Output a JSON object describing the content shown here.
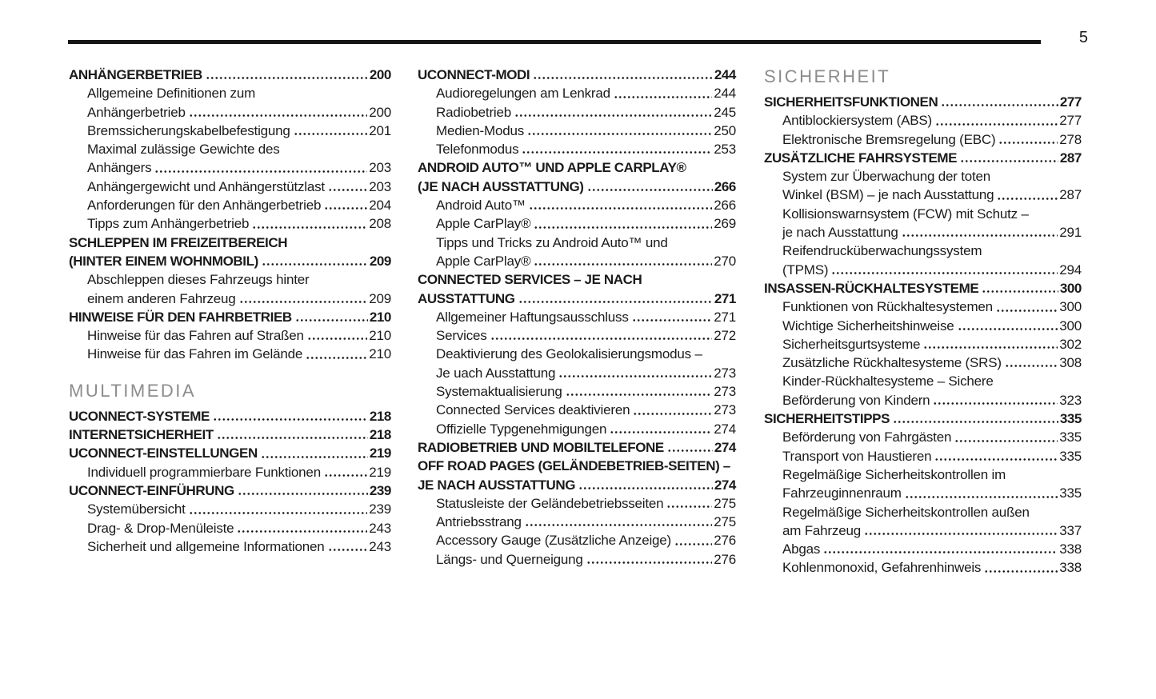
{
  "page": {
    "number": "5"
  },
  "colors": {
    "text": "#1b1b1b",
    "section_header": "#8c8c8c",
    "rule": "#161616",
    "page_bg": "#ffffff"
  },
  "columns": [
    {
      "name": "toc-column-1",
      "items": [
        {
          "level": "chapter",
          "text": "ANHÄNGERBETRIEB",
          "page": "200"
        },
        {
          "level": "sub",
          "text": "Allgemeine Definitionen zum",
          "page": null
        },
        {
          "level": "sub",
          "text": "Anhängerbetrieb",
          "page": "200"
        },
        {
          "level": "sub",
          "text": "Bremssicherungskabelbefestigung",
          "page": "201"
        },
        {
          "level": "sub",
          "text": "Maximal zulässige Gewichte des",
          "page": null
        },
        {
          "level": "sub",
          "text": "Anhängers",
          "page": "203"
        },
        {
          "level": "sub",
          "text": "Anhängergewicht und Anhängerstützlast",
          "page": "203"
        },
        {
          "level": "sub",
          "text": "Anforderungen für den Anhängerbetrieb",
          "page": "204"
        },
        {
          "level": "sub",
          "text": "Tipps zum Anhängerbetrieb",
          "page": "208"
        },
        {
          "level": "chapter",
          "text": "SCHLEPPEN IM FREIZEITBEREICH",
          "page": null
        },
        {
          "level": "chapter",
          "text": "(HINTER EINEM WOHNMOBIL)",
          "page": "209"
        },
        {
          "level": "sub",
          "text": "Abschleppen dieses Fahrzeugs hinter",
          "page": null
        },
        {
          "level": "sub",
          "text": "einem anderen Fahrzeug",
          "page": "209"
        },
        {
          "level": "chapter",
          "text": "HINWEISE FÜR DEN FAHRBETRIEB",
          "page": "210"
        },
        {
          "level": "sub",
          "text": "Hinweise für das Fahren auf Straßen",
          "page": "210"
        },
        {
          "level": "sub",
          "text": "Hinweise für das Fahren im Gelände",
          "page": "210"
        },
        {
          "level": "section",
          "text": "MULTIMEDIA",
          "page": null
        },
        {
          "level": "chapter",
          "text": "UCONNECT-SYSTEME",
          "page": "218"
        },
        {
          "level": "chapter",
          "text": "INTERNETSICHERHEIT",
          "page": "218"
        },
        {
          "level": "chapter",
          "text": "UCONNECT-EINSTELLUNGEN",
          "page": "219"
        },
        {
          "level": "sub",
          "text": "Individuell programmierbare Funktionen",
          "page": "219"
        },
        {
          "level": "chapter",
          "text": "UCONNECT-EINFÜHRUNG",
          "page": "239"
        },
        {
          "level": "sub",
          "text": "Systemübersicht",
          "page": "239"
        },
        {
          "level": "sub",
          "text": "Drag- & Drop-Menüleiste",
          "page": "243"
        },
        {
          "level": "sub",
          "text": "Sicherheit und allgemeine Informationen",
          "page": "243"
        }
      ]
    },
    {
      "name": "toc-column-2",
      "items": [
        {
          "level": "chapter",
          "text": "UCONNECT-MODI",
          "page": "244"
        },
        {
          "level": "sub",
          "text": "Audioregelungen am Lenkrad",
          "page": "244"
        },
        {
          "level": "sub",
          "text": "Radiobetrieb",
          "page": "245"
        },
        {
          "level": "sub",
          "text": "Medien-Modus",
          "page": "250"
        },
        {
          "level": "sub",
          "text": "Telefonmodus",
          "page": "253"
        },
        {
          "level": "chapter",
          "text": "ANDROID AUTO™ UND APPLE CARPLAY®",
          "page": null
        },
        {
          "level": "chapter",
          "text": "(JE NACH AUSSTATTUNG)",
          "page": "266"
        },
        {
          "level": "sub",
          "text": "Android Auto™",
          "page": "266"
        },
        {
          "level": "sub",
          "text": "Apple CarPlay®",
          "page": "269"
        },
        {
          "level": "sub",
          "text": "Tipps und Tricks zu Android Auto™ und",
          "page": null
        },
        {
          "level": "sub",
          "text": "Apple CarPlay®",
          "page": "270"
        },
        {
          "level": "chapter",
          "text": "CONNECTED SERVICES – JE NACH",
          "page": null
        },
        {
          "level": "chapter",
          "text": "AUSSTATTUNG",
          "page": "271"
        },
        {
          "level": "sub",
          "text": "Allgemeiner Haftungsausschluss",
          "page": "271"
        },
        {
          "level": "sub",
          "text": "Services",
          "page": "272"
        },
        {
          "level": "sub",
          "text": "Deaktivierung des Geolokalisierungsmodus –",
          "page": null
        },
        {
          "level": "sub",
          "text": "Je uach Ausstattung",
          "page": "273"
        },
        {
          "level": "sub",
          "text": "Systemaktualisierung",
          "page": "273"
        },
        {
          "level": "sub",
          "text": "Connected Services deaktivieren",
          "page": "273"
        },
        {
          "level": "sub",
          "text": "Offizielle Typgenehmigungen",
          "page": "274"
        },
        {
          "level": "chapter",
          "text": "RADIOBETRIEB UND MOBILTELEFONE",
          "page": "274"
        },
        {
          "level": "chapter",
          "text": "OFF ROAD PAGES (GELÄNDEBETRIEB-SEITEN) –",
          "page": null
        },
        {
          "level": "chapter",
          "text": "JE NACH AUSSTATTUNG",
          "page": "274"
        },
        {
          "level": "sub",
          "text": "Statusleiste der Geländebetriebsseiten",
          "page": "275"
        },
        {
          "level": "sub",
          "text": "Antriebsstrang",
          "page": "275"
        },
        {
          "level": "sub",
          "text": "Accessory Gauge (Zusätzliche Anzeige)",
          "page": "276"
        },
        {
          "level": "sub",
          "text": "Längs- und Querneigung",
          "page": "276"
        }
      ]
    },
    {
      "name": "toc-column-3",
      "items": [
        {
          "level": "section",
          "text": "SICHERHEIT",
          "page": null
        },
        {
          "level": "chapter",
          "text": "SICHERHEITSFUNKTIONEN",
          "page": "277"
        },
        {
          "level": "sub",
          "text": "Antiblockiersystem (ABS)",
          "page": "277"
        },
        {
          "level": "sub",
          "text": "Elektronische Bremsregelung (EBC)",
          "page": "278"
        },
        {
          "level": "chapter",
          "text": "ZUSÄTZLICHE FAHRSYSTEME",
          "page": "287"
        },
        {
          "level": "sub",
          "text": "System zur Überwachung der toten",
          "page": null
        },
        {
          "level": "sub",
          "text": "Winkel (BSM) – je nach Ausstattung",
          "page": "287"
        },
        {
          "level": "sub",
          "text": "Kollisionswarnsystem (FCW) mit Schutz –",
          "page": null
        },
        {
          "level": "sub",
          "text": "je nach Ausstattung",
          "page": "291"
        },
        {
          "level": "sub",
          "text": "Reifendrucküberwachungssystem",
          "page": null
        },
        {
          "level": "sub",
          "text": "(TPMS)",
          "page": "294"
        },
        {
          "level": "chapter",
          "text": "INSASSEN-RÜCKHALTESYSTEME",
          "page": "300"
        },
        {
          "level": "sub",
          "text": "Funktionen von Rückhaltesystemen",
          "page": "300"
        },
        {
          "level": "sub",
          "text": "Wichtige Sicherheitshinweise",
          "page": "300"
        },
        {
          "level": "sub",
          "text": "Sicherheitsgurtsysteme",
          "page": "302"
        },
        {
          "level": "sub",
          "text": "Zusätzliche Rückhaltesysteme (SRS)",
          "page": "308"
        },
        {
          "level": "sub",
          "text": "Kinder-Rückhaltesysteme – Sichere",
          "page": null
        },
        {
          "level": "sub",
          "text": "Beförderung von Kindern",
          "page": "323"
        },
        {
          "level": "chapter",
          "text": "SICHERHEITSTIPPS",
          "page": "335"
        },
        {
          "level": "sub",
          "text": "Beförderung von Fahrgästen",
          "page": "335"
        },
        {
          "level": "sub",
          "text": "Transport von Haustieren",
          "page": "335"
        },
        {
          "level": "sub",
          "text": "Regelmäßige Sicherheitskontrollen im",
          "page": null
        },
        {
          "level": "sub",
          "text": "Fahrzeuginnenraum",
          "page": "335"
        },
        {
          "level": "sub",
          "text": "Regelmäßige Sicherheitskontrollen außen",
          "page": null
        },
        {
          "level": "sub",
          "text": "am Fahrzeug",
          "page": "337"
        },
        {
          "level": "sub",
          "text": "Abgas",
          "page": "338"
        },
        {
          "level": "sub",
          "text": "Kohlenmonoxid, Gefahrenhinweis",
          "page": "338"
        }
      ]
    }
  ]
}
